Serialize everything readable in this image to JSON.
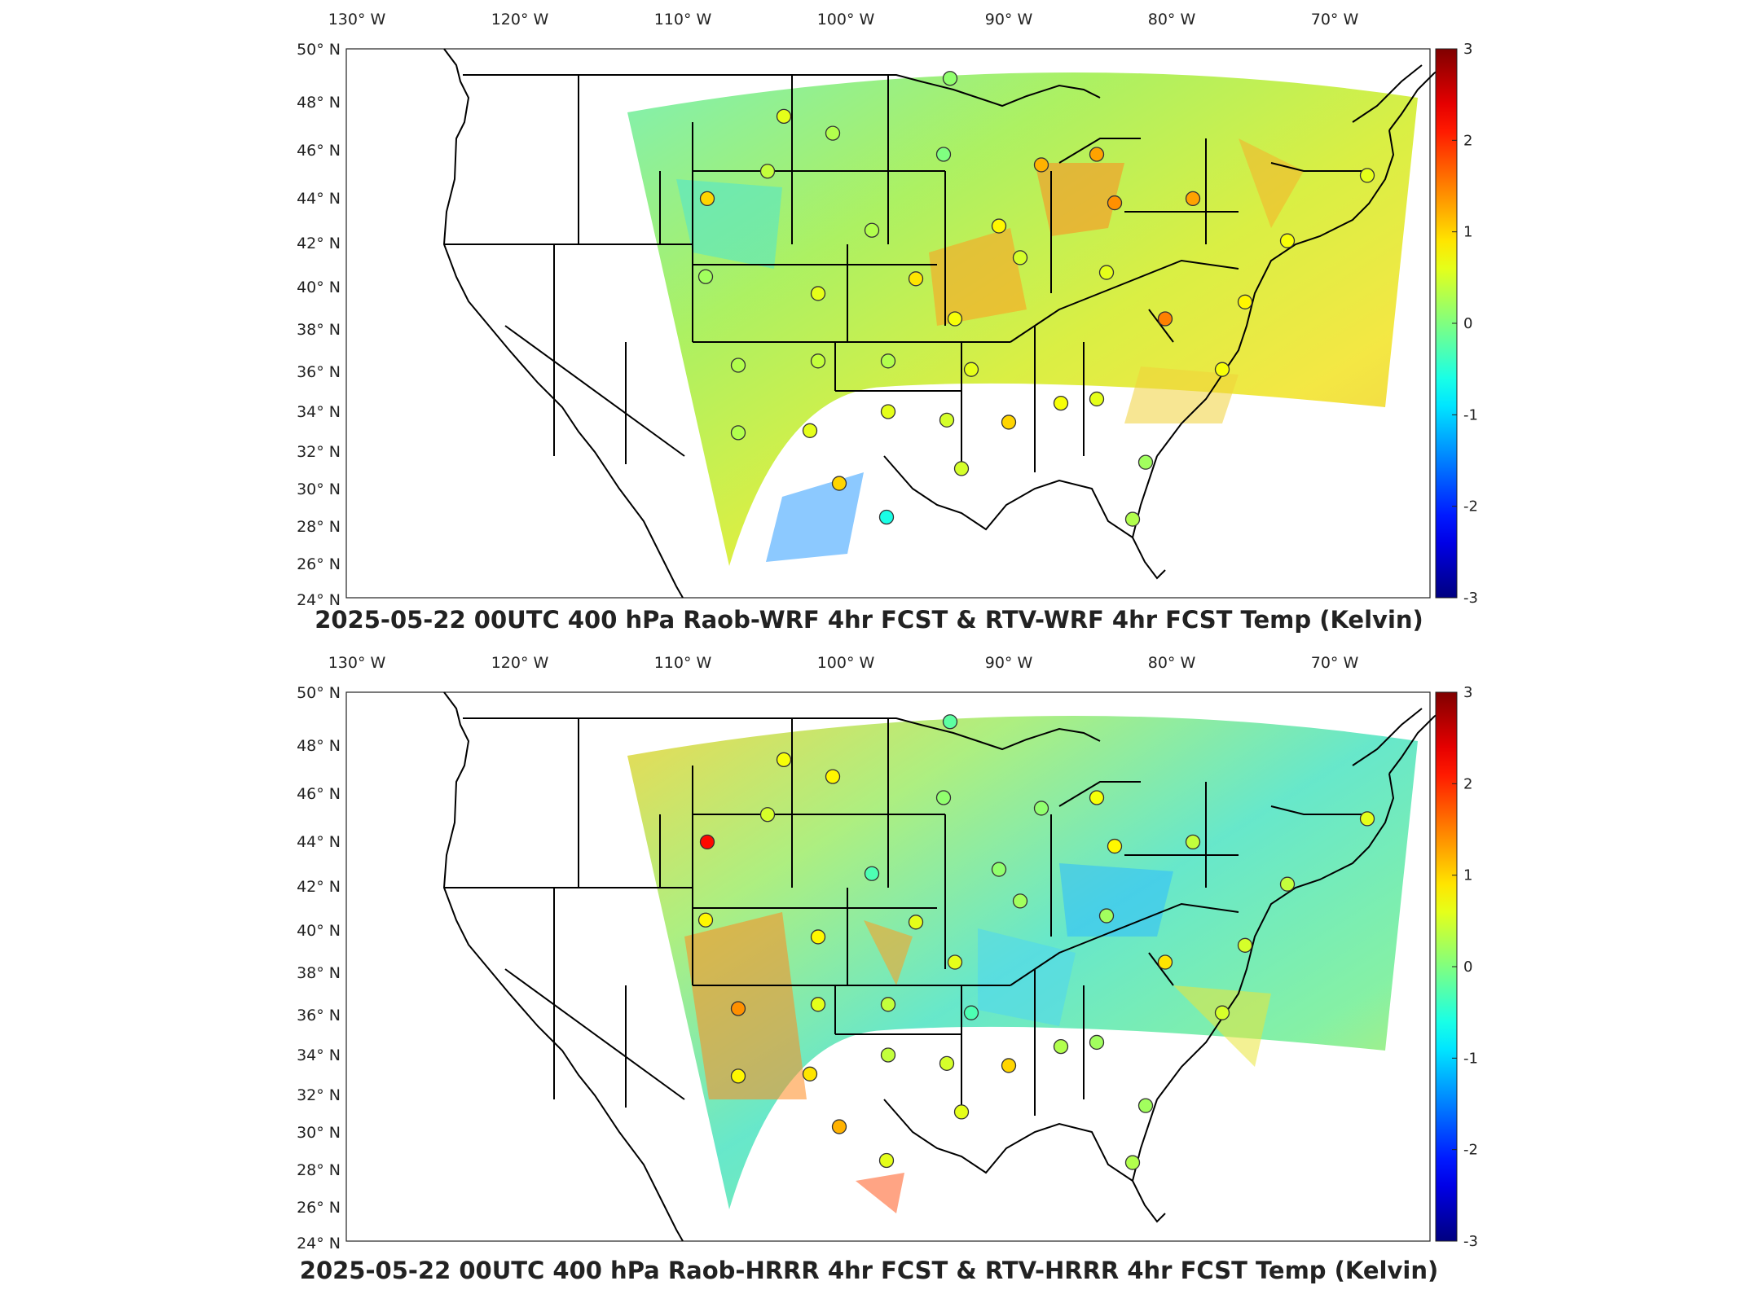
{
  "lon_ticks": [
    "130° W",
    "120° W",
    "110° W",
    "100° W",
    "90° W",
    "80° W",
    "70° W"
  ],
  "lat_ticks": [
    "50° N",
    "48° N",
    "46° N",
    "44° N",
    "42° N",
    "40° N",
    "38° N",
    "36° N",
    "34° N",
    "32° N",
    "30° N",
    "28° N",
    "26° N",
    "24° N"
  ],
  "colorbar": {
    "ticks": [
      "3",
      "2",
      "1",
      "0",
      "-1",
      "-2",
      "-3"
    ],
    "min": -3,
    "max": 3,
    "colormap": "jet"
  },
  "colors": {
    "blue": "#1e64ff",
    "cyan": "#2ee6e0",
    "green": "#7ff07a",
    "yellow": "#f5f02a",
    "orange": "#ff9d1f",
    "red": "#e01010",
    "darkred": "#800000",
    "darkblue": "#00008f"
  },
  "panels": [
    {
      "title": "2025-05-22 00UTC 400 hPa Raob-WRF 4hr FCST & RTV-WRF 4hr FCST Temp (Kelvin)",
      "stations": [
        {
          "lon": -93.6,
          "lat": 48.6,
          "value": 0.1
        },
        {
          "lon": -103.8,
          "lat": 46.8,
          "value": 0.6
        },
        {
          "lon": -100.8,
          "lat": 46.0,
          "value": 0.3
        },
        {
          "lon": -94.0,
          "lat": 45.0,
          "value": 0.0
        },
        {
          "lon": -108.5,
          "lat": 42.9,
          "value": 1.0
        },
        {
          "lon": -104.8,
          "lat": 44.2,
          "value": 0.4
        },
        {
          "lon": -88.0,
          "lat": 44.5,
          "value": 1.2
        },
        {
          "lon": -84.6,
          "lat": 45.0,
          "value": 1.3
        },
        {
          "lon": -83.5,
          "lat": 42.7,
          "value": 1.4
        },
        {
          "lon": -78.7,
          "lat": 42.9,
          "value": 1.3
        },
        {
          "lon": -68.0,
          "lat": 44.0,
          "value": 0.6
        },
        {
          "lon": -98.4,
          "lat": 41.4,
          "value": 0.3
        },
        {
          "lon": -90.6,
          "lat": 41.6,
          "value": 0.8
        },
        {
          "lon": -89.3,
          "lat": 40.1,
          "value": 0.5
        },
        {
          "lon": -84.0,
          "lat": 39.4,
          "value": 0.6
        },
        {
          "lon": -95.7,
          "lat": 39.1,
          "value": 0.9
        },
        {
          "lon": -101.7,
          "lat": 38.4,
          "value": 0.6
        },
        {
          "lon": -108.6,
          "lat": 39.2,
          "value": 0.2
        },
        {
          "lon": -93.3,
          "lat": 37.2,
          "value": 0.7
        },
        {
          "lon": -80.4,
          "lat": 37.2,
          "value": 1.5
        },
        {
          "lon": -75.5,
          "lat": 38.0,
          "value": 0.8
        },
        {
          "lon": -72.9,
          "lat": 40.9,
          "value": 0.7
        },
        {
          "lon": -106.6,
          "lat": 35.0,
          "value": 0.3
        },
        {
          "lon": -101.7,
          "lat": 35.2,
          "value": 0.4
        },
        {
          "lon": -97.4,
          "lat": 35.2,
          "value": 0.3
        },
        {
          "lon": -92.3,
          "lat": 34.8,
          "value": 0.6
        },
        {
          "lon": -86.8,
          "lat": 33.2,
          "value": 0.7
        },
        {
          "lon": -84.6,
          "lat": 33.4,
          "value": 0.6
        },
        {
          "lon": -76.9,
          "lat": 34.8,
          "value": 0.7
        },
        {
          "lon": -97.4,
          "lat": 32.8,
          "value": 0.6
        },
        {
          "lon": -93.8,
          "lat": 32.4,
          "value": 0.5
        },
        {
          "lon": -90.0,
          "lat": 32.3,
          "value": 1.0
        },
        {
          "lon": -106.6,
          "lat": 31.8,
          "value": 0.3
        },
        {
          "lon": -102.2,
          "lat": 31.9,
          "value": 0.6
        },
        {
          "lon": -92.9,
          "lat": 30.1,
          "value": 0.5
        },
        {
          "lon": -81.6,
          "lat": 30.4,
          "value": 0.2
        },
        {
          "lon": -100.4,
          "lat": 29.4,
          "value": 1.0
        },
        {
          "lon": -97.5,
          "lat": 27.8,
          "value": -0.6
        },
        {
          "lon": -82.4,
          "lat": 27.7,
          "value": 0.3
        }
      ]
    },
    {
      "title": "2025-05-22 00UTC 400 hPa Raob-HRRR 4hr FCST & RTV-HRRR 4hr FCST Temp (Kelvin)",
      "stations": [
        {
          "lon": -93.6,
          "lat": 48.6,
          "value": -0.2
        },
        {
          "lon": -103.8,
          "lat": 46.8,
          "value": 0.7
        },
        {
          "lon": -100.8,
          "lat": 46.0,
          "value": 0.8
        },
        {
          "lon": -94.0,
          "lat": 45.0,
          "value": 0.1
        },
        {
          "lon": -108.5,
          "lat": 42.9,
          "value": 2.2
        },
        {
          "lon": -104.8,
          "lat": 44.2,
          "value": 0.5
        },
        {
          "lon": -88.0,
          "lat": 44.5,
          "value": 0.1
        },
        {
          "lon": -84.6,
          "lat": 45.0,
          "value": 0.7
        },
        {
          "lon": -83.5,
          "lat": 42.7,
          "value": 0.8
        },
        {
          "lon": -78.7,
          "lat": 42.9,
          "value": 0.4
        },
        {
          "lon": -68.0,
          "lat": 44.0,
          "value": 0.6
        },
        {
          "lon": -98.4,
          "lat": 41.4,
          "value": -0.3
        },
        {
          "lon": -90.6,
          "lat": 41.6,
          "value": 0.1
        },
        {
          "lon": -89.3,
          "lat": 40.1,
          "value": 0.2
        },
        {
          "lon": -84.0,
          "lat": 39.4,
          "value": 0.2
        },
        {
          "lon": -95.7,
          "lat": 39.1,
          "value": 0.6
        },
        {
          "lon": -101.7,
          "lat": 38.4,
          "value": 0.8
        },
        {
          "lon": -108.6,
          "lat": 39.2,
          "value": 0.8
        },
        {
          "lon": -93.3,
          "lat": 37.2,
          "value": 0.6
        },
        {
          "lon": -80.4,
          "lat": 37.2,
          "value": 0.9
        },
        {
          "lon": -75.5,
          "lat": 38.0,
          "value": 0.5
        },
        {
          "lon": -72.9,
          "lat": 40.9,
          "value": 0.4
        },
        {
          "lon": -106.6,
          "lat": 35.0,
          "value": 1.4
        },
        {
          "lon": -101.7,
          "lat": 35.2,
          "value": 0.6
        },
        {
          "lon": -97.4,
          "lat": 35.2,
          "value": 0.4
        },
        {
          "lon": -92.3,
          "lat": 34.8,
          "value": -0.3
        },
        {
          "lon": -86.8,
          "lat": 33.2,
          "value": 0.3
        },
        {
          "lon": -84.6,
          "lat": 33.4,
          "value": 0.2
        },
        {
          "lon": -76.9,
          "lat": 34.8,
          "value": 0.5
        },
        {
          "lon": -97.4,
          "lat": 32.8,
          "value": 0.4
        },
        {
          "lon": -93.8,
          "lat": 32.4,
          "value": 0.5
        },
        {
          "lon": -90.0,
          "lat": 32.3,
          "value": 1.0
        },
        {
          "lon": -106.6,
          "lat": 31.8,
          "value": 0.8
        },
        {
          "lon": -102.2,
          "lat": 31.9,
          "value": 0.9
        },
        {
          "lon": -92.9,
          "lat": 30.1,
          "value": 0.6
        },
        {
          "lon": -81.6,
          "lat": 30.4,
          "value": 0.2
        },
        {
          "lon": -100.4,
          "lat": 29.4,
          "value": 1.2
        },
        {
          "lon": -97.5,
          "lat": 27.8,
          "value": 0.6
        },
        {
          "lon": -82.4,
          "lat": 27.7,
          "value": 0.3
        }
      ]
    }
  ]
}
